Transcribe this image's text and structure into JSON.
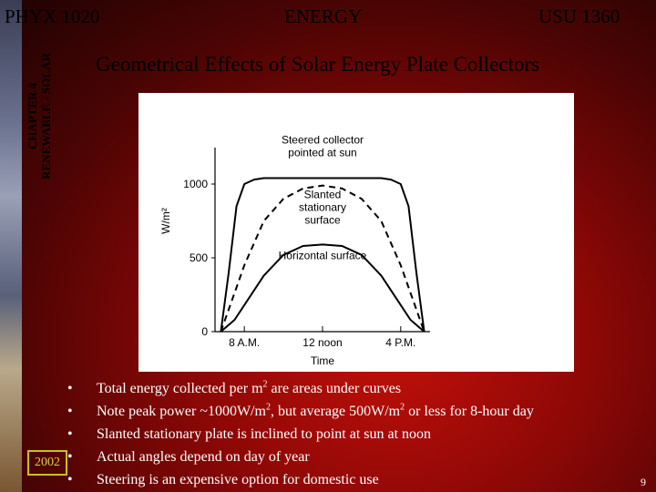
{
  "header": {
    "left": "PHYX 1020",
    "center": "ENERGY",
    "right": "USU 1360"
  },
  "sidebar": {
    "line1": "CHAPTER 4",
    "line2": "RENEWABLE - SOLAR"
  },
  "slide": {
    "title": "Geometrical Effects of Solar Energy Plate Collectors",
    "year": "2002",
    "page": "9"
  },
  "bullets": [
    {
      "text": "Total energy collected per m",
      "sup": "2",
      "after": " are areas under curves"
    },
    {
      "text": "Note peak power ~1000W/m",
      "sup": "2",
      "after": ", but average 500W/m",
      "sup2": "2",
      "after2": " or less for 8-hour day"
    },
    {
      "text": "Slanted stationary plate is inclined to point at sun at noon"
    },
    {
      "text": "Actual angles depend on day of year"
    },
    {
      "text": "Steering is an expensive option for domestic use"
    }
  ],
  "bullet_symbol": "•",
  "chart_data": {
    "type": "line",
    "ylabel": "W/m²",
    "xlabel": "Time",
    "yticks": [
      "0",
      "500",
      "1000"
    ],
    "xticks": [
      "8 A.M.",
      "12 noon",
      "4 P.M."
    ],
    "ylim": [
      0,
      1200
    ],
    "series": [
      {
        "name": "Steered collector pointed at sun",
        "style": "solid",
        "x": [
          6.8,
          7.2,
          7.6,
          8,
          8.5,
          9,
          12,
          15,
          15.5,
          16,
          16.4,
          16.8,
          17.2
        ],
        "y": [
          0,
          400,
          850,
          1000,
          1030,
          1040,
          1040,
          1040,
          1030,
          1000,
          850,
          400,
          0
        ]
      },
      {
        "name": "Slanted stationary surface",
        "style": "dashed",
        "x": [
          6.8,
          7.2,
          8,
          9,
          10,
          11,
          12,
          13,
          14,
          15,
          16,
          16.8,
          17.2
        ],
        "y": [
          0,
          150,
          450,
          750,
          900,
          970,
          990,
          970,
          900,
          750,
          450,
          150,
          0
        ]
      },
      {
        "name": "Horizontal surface",
        "style": "solid",
        "x": [
          6.8,
          7.5,
          8,
          9,
          10,
          11,
          12,
          13,
          14,
          15,
          16,
          16.5,
          17.2
        ],
        "y": [
          0,
          80,
          180,
          380,
          520,
          580,
          590,
          580,
          520,
          380,
          180,
          80,
          0
        ]
      }
    ]
  }
}
